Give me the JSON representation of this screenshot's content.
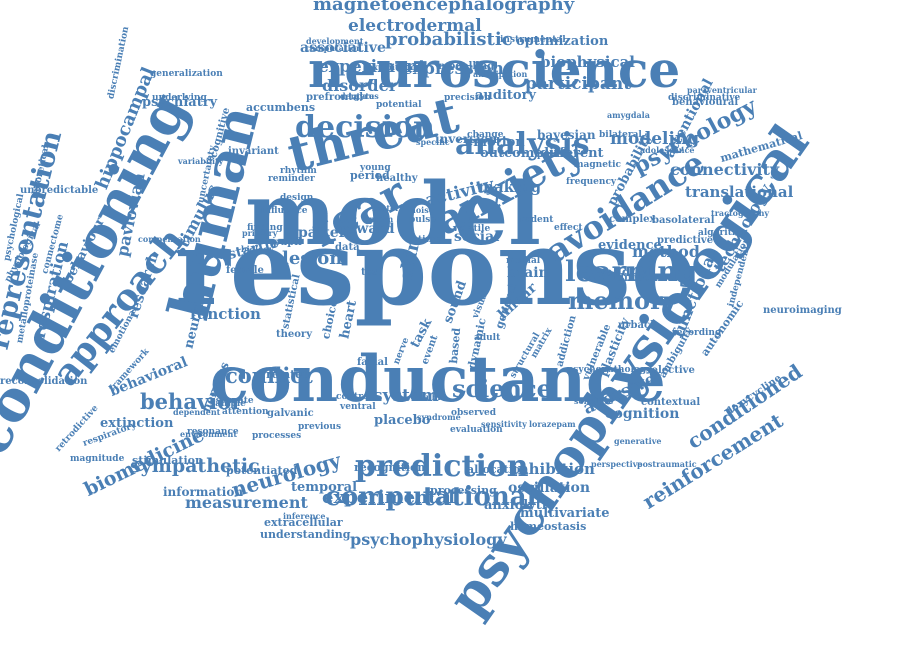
{
  "colors": {
    "word": "#4a7fb5",
    "background": "#ffffff"
  },
  "words": [
    "response",
    "model",
    "conductance",
    "conditioning",
    "psychophysiological",
    "human",
    "neuroscience",
    "threat",
    "fear",
    "anxiety",
    "avoidance",
    "decision",
    "analysis",
    "learning",
    "memory",
    "prediction",
    "computational",
    "experimental",
    "science",
    "system",
    "representation",
    "approach",
    "conflict",
    "behavior",
    "reinforcement",
    "conditioned",
    "biomedicine",
    "neurology",
    "sympathetic",
    "measurement",
    "psychophysiology",
    "magnetoencephalography",
    "electrodermal",
    "probabilistic",
    "associative",
    "experiment",
    "expression",
    "disorder",
    "participant",
    "biophysical",
    "psychology",
    "modeling",
    "connectivity",
    "translational",
    "method",
    "technology",
    "functional",
    "hippocampal",
    "pavlovian",
    "stimulus",
    "startle",
    "research",
    "function",
    "lesion",
    "pattern",
    "reward",
    "skin",
    "activity",
    "making",
    "emotion",
    "outcome",
    "inversion",
    "bayesian",
    "evidence",
    "validity",
    "aversive",
    "cognition",
    "inhibition",
    "oscillation",
    "anxiolytic",
    "multivariate",
    "homeostasis",
    "extracellular",
    "understanding",
    "information",
    "temporal",
    "behavioral",
    "extinction",
    "stimulation",
    "potentiated",
    "recognition",
    "allocation",
    "processing",
    "placebo",
    "respiration",
    "behaviour",
    "psychiatry",
    "accumbens",
    "optimization",
    "modelling",
    "behavioural",
    "mathematical",
    "basolateral",
    "complex",
    "neuroimaging",
    "autonomic",
    "plasticity",
    "selective",
    "contextual",
    "doxycycline",
    "ambiguity",
    "reconsolidation",
    "unpredictable",
    "physiological",
    "generalization",
    "discrimination",
    "retrodictive",
    "magnitude",
    "respiratory",
    "related",
    "nervous",
    "neural",
    "sound",
    "brain",
    "linear",
    "social",
    "task",
    "heart",
    "choice",
    "theory",
    "auditory",
    "precision",
    "potential",
    "development",
    "instrumental",
    "computation",
    "prefrontal",
    "underlying",
    "paraventricular",
    "discriminative",
    "frequency",
    "magnetic",
    "patient",
    "emotional",
    "finding",
    "female",
    "sample",
    "statistical",
    "visual",
    "rodent",
    "different",
    "predictive",
    "algorithm",
    "modulation",
    "independent",
    "recording",
    "urbach",
    "matrix",
    "adult",
    "facial",
    "dynamic",
    "structural",
    "based",
    "event",
    "control",
    "ventral",
    "double",
    "observed",
    "sensitivity",
    "lorazepam",
    "resonance",
    "processes",
    "previous",
    "galvanic",
    "attention",
    "estimate",
    "dependent",
    "framework",
    "effect",
    "test",
    "data",
    "time",
    "pupil",
    "design",
    "rhythm",
    "young",
    "period",
    "healthy",
    "change",
    "bilateral",
    "adolescence",
    "amygdala",
    "biology",
    "primary",
    "reminder",
    "influence",
    "uncertainty",
    "cognitive",
    "invariant",
    "variability",
    "general",
    "nerve",
    "medial",
    "tractography",
    "generative",
    "perspective",
    "postraumatic",
    "sensitive",
    "vulnerable",
    "addiction",
    "psychopathology",
    "exploitation",
    "anticipation",
    "evaluation",
    "syndrome",
    "dentate",
    "gyrus",
    "specific",
    "ppsm",
    "better",
    "noise",
    "volatile",
    "pulse",
    "connectome",
    "metalloproteinase",
    "psychological",
    "theoretical",
    "compensation",
    "environment",
    "inference",
    "difference",
    "probability",
    "attentional"
  ]
}
